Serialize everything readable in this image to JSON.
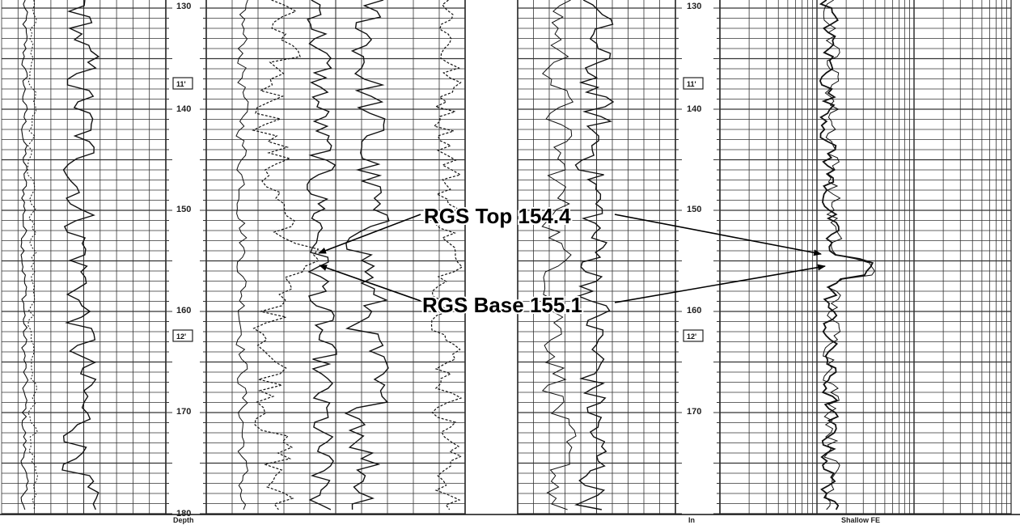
{
  "depth_track_left": {
    "labels": [
      "130",
      "140",
      "150",
      "160",
      "170",
      "180"
    ],
    "markers": [
      "11'",
      "12'"
    ],
    "footer": "Depth"
  },
  "depth_track_right": {
    "labels": [
      "130",
      "140",
      "150",
      "160",
      "170"
    ],
    "markers": [
      "11'",
      "12'"
    ],
    "footer": "In"
  },
  "track_footers": {
    "resistivity": "Shallow FE"
  },
  "annotations": {
    "top": "RGS Top 154.4",
    "base": "RGS Base 155.1"
  },
  "depth_scale": {
    "start_depth": 130,
    "end_depth": 180,
    "label_step": 10,
    "marker_depths": [
      136.5,
      162.5
    ]
  },
  "picks": {
    "top_depth": 154.4,
    "base_depth": 155.1
  },
  "colors": {
    "grid": "#333333",
    "curve": "#111111",
    "arrow": "#000000",
    "background": "#ffffff"
  }
}
